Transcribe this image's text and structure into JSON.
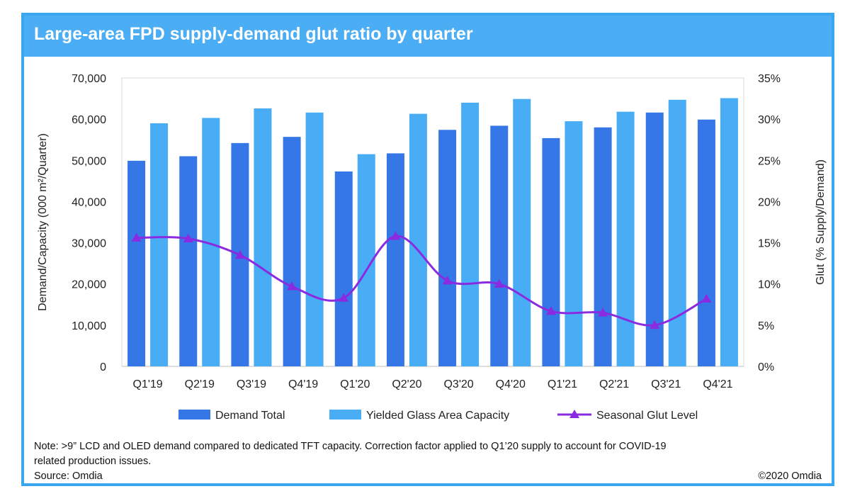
{
  "title": "Large-area FPD supply-demand glut ratio by quarter",
  "note_lines": [
    "Note: >9” LCD and OLED demand compared to dedicated TFT capacity. Correction factor applied to Q1’20 supply to account for COVID-19",
    "related production issues."
  ],
  "source": "Source: Omdia",
  "copyright": "©2020 Omdia",
  "colors": {
    "title_bar": "#4badf4",
    "frame": "#3aa6f0",
    "demand": "#3577e6",
    "capacity": "#49adf5",
    "glut": "#8a2be2"
  },
  "chart_data": {
    "type": "bar",
    "categories": [
      "Q1'19",
      "Q2'19",
      "Q3'19",
      "Q4'19",
      "Q1'20",
      "Q2'20",
      "Q3'20",
      "Q4'20",
      "Q1'21",
      "Q2'21",
      "Q3'21",
      "Q4'21"
    ],
    "series": [
      {
        "name": "Demand Total",
        "type": "bar",
        "axis": "left",
        "values": [
          49900,
          51000,
          54200,
          55700,
          47300,
          51700,
          57400,
          58400,
          55400,
          58000,
          61600,
          59900
        ]
      },
      {
        "name": "Yielded Glass Area Capacity",
        "type": "bar",
        "axis": "left",
        "values": [
          59000,
          60300,
          62600,
          61600,
          51500,
          61300,
          64000,
          64900,
          59500,
          61800,
          64700,
          65100
        ]
      },
      {
        "name": "Seasonal Glut Level",
        "type": "line",
        "axis": "right",
        "marker": "triangle",
        "values": [
          15.6,
          15.5,
          13.5,
          9.7,
          8.3,
          15.8,
          10.4,
          10.0,
          6.7,
          6.5,
          5.0,
          8.2
        ]
      }
    ],
    "ylabel": "Demand/Capacity (000 m²/Quarter)",
    "y2label": "Glut (% Supply/Demand)",
    "ylim": [
      0,
      70000
    ],
    "y2lim": [
      0,
      35
    ],
    "yticks": [
      "0",
      "10,000",
      "20,000",
      "30,000",
      "40,000",
      "50,000",
      "60,000",
      "70,000"
    ],
    "y2ticks": [
      "0%",
      "5%",
      "10%",
      "15%",
      "20%",
      "25%",
      "30%",
      "35%"
    ],
    "legend": [
      "Demand Total",
      "Yielded Glass Area Capacity",
      "Seasonal Glut Level"
    ],
    "legend_position": "bottom",
    "grid": false
  }
}
